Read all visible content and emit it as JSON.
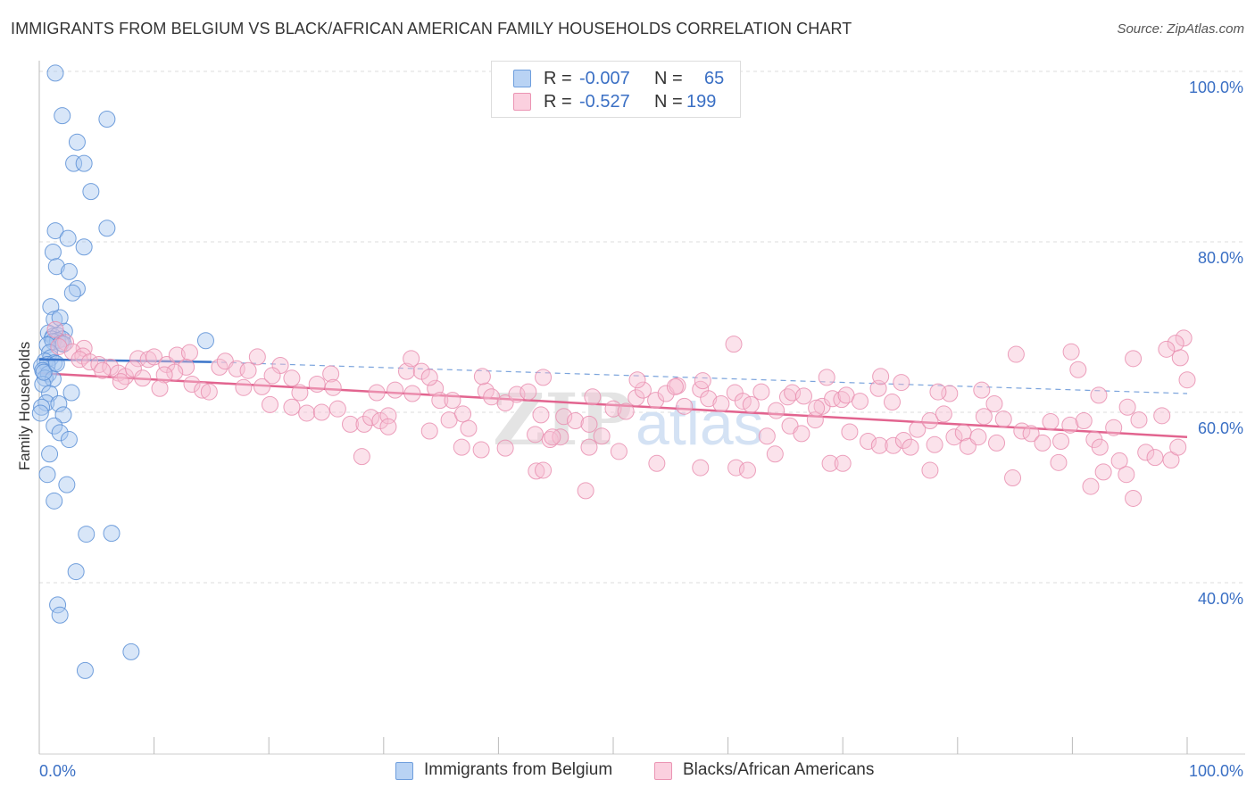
{
  "title": "IMMIGRANTS FROM BELGIUM VS BLACK/AFRICAN AMERICAN FAMILY HOUSEHOLDS CORRELATION CHART",
  "source": "Source: ZipAtlas.com",
  "legend": {
    "rows": [
      {
        "r_label": "R =",
        "r_value": "-0.007",
        "n_label": "N =",
        "n_value": "65"
      },
      {
        "r_label": "R =",
        "r_value": "-0.527",
        "n_label": "N =",
        "n_value": "199"
      }
    ]
  },
  "chart_data": {
    "type": "scatter",
    "title": "IMMIGRANTS FROM BELGIUM VS BLACK/AFRICAN AMERICAN FAMILY HOUSEHOLDS CORRELATION CHART",
    "xlabel": "",
    "ylabel": "Family Households",
    "xlim": [
      0,
      100
    ],
    "ylim": [
      20,
      102
    ],
    "x_tick_labels": [
      "0.0%",
      "100.0%"
    ],
    "y_ticks": [
      40,
      60,
      80,
      100
    ],
    "y_tick_labels": [
      "40.0%",
      "60.0%",
      "80.0%",
      "100.0%"
    ],
    "grid": true,
    "legend_position": "top-center",
    "colors": {
      "blue": "#8fb8ec",
      "blue_line": "#3a74c9",
      "pink": "#f0a6bf",
      "pink_line": "#e2648f",
      "tick_label": "#3a6fc4"
    },
    "watermark": "ZIPatlas",
    "series": [
      {
        "name": "Immigrants from Belgium",
        "color": "#8fb8ec",
        "trend": {
          "x": [
            0,
            15
          ],
          "y": [
            66.2,
            65.9
          ],
          "dashed_extension": {
            "x": [
              15,
              100
            ],
            "y": [
              65.9,
              62.2
            ]
          }
        },
        "points": [
          [
            1.4,
            99.8
          ],
          [
            2.0,
            94.8
          ],
          [
            5.9,
            94.4
          ],
          [
            3.3,
            91.7
          ],
          [
            3.0,
            89.2
          ],
          [
            3.9,
            89.2
          ],
          [
            4.5,
            85.9
          ],
          [
            1.4,
            81.3
          ],
          [
            5.9,
            81.6
          ],
          [
            2.5,
            80.4
          ],
          [
            1.2,
            78.8
          ],
          [
            3.9,
            79.4
          ],
          [
            1.5,
            77.1
          ],
          [
            2.6,
            76.5
          ],
          [
            3.3,
            74.5
          ],
          [
            2.9,
            74.0
          ],
          [
            1.0,
            72.4
          ],
          [
            1.3,
            70.9
          ],
          [
            1.8,
            71.1
          ],
          [
            2.2,
            69.5
          ],
          [
            0.8,
            69.3
          ],
          [
            1.2,
            68.9
          ],
          [
            1.6,
            69.0
          ],
          [
            1.1,
            68.6
          ],
          [
            2.0,
            68.6
          ],
          [
            1.6,
            68.4
          ],
          [
            1.2,
            68.3
          ],
          [
            1.9,
            68.1
          ],
          [
            0.7,
            67.9
          ],
          [
            2.1,
            68.0
          ],
          [
            14.5,
            68.4
          ],
          [
            0.9,
            67.0
          ],
          [
            1.0,
            66.4
          ],
          [
            0.5,
            66.0
          ],
          [
            1.3,
            65.8
          ],
          [
            0.7,
            65.6
          ],
          [
            0.2,
            65.4
          ],
          [
            0.3,
            64.9
          ],
          [
            0.8,
            64.5
          ],
          [
            0.5,
            64.0
          ],
          [
            1.2,
            63.9
          ],
          [
            0.3,
            63.3
          ],
          [
            0.9,
            62.2
          ],
          [
            2.8,
            62.3
          ],
          [
            0.6,
            61.1
          ],
          [
            1.7,
            61.0
          ],
          [
            0.2,
            60.6
          ],
          [
            0.1,
            59.9
          ],
          [
            2.1,
            59.7
          ],
          [
            1.3,
            58.4
          ],
          [
            1.8,
            57.6
          ],
          [
            2.6,
            56.8
          ],
          [
            0.9,
            55.1
          ],
          [
            0.7,
            52.7
          ],
          [
            2.4,
            51.5
          ],
          [
            1.3,
            49.6
          ],
          [
            4.1,
            45.7
          ],
          [
            6.3,
            45.8
          ],
          [
            3.2,
            41.3
          ],
          [
            1.6,
            37.4
          ],
          [
            1.8,
            36.2
          ],
          [
            8.0,
            31.9
          ],
          [
            4.0,
            29.7
          ],
          [
            0.4,
            64.7
          ],
          [
            1.5,
            65.7
          ]
        ]
      },
      {
        "name": "Blacks/African Americans",
        "color": "#f0a6bf",
        "trend": {
          "x": [
            0,
            100
          ],
          "y": [
            64.6,
            57.1
          ]
        },
        "points": [
          [
            1.4,
            69.7
          ],
          [
            2.3,
            68.2
          ],
          [
            1.7,
            67.7
          ],
          [
            3.9,
            67.5
          ],
          [
            2.9,
            67.1
          ],
          [
            3.8,
            66.6
          ],
          [
            3.5,
            66.2
          ],
          [
            4.4,
            65.9
          ],
          [
            5.2,
            65.6
          ],
          [
            6.2,
            65.3
          ],
          [
            5.5,
            64.9
          ],
          [
            6.9,
            64.6
          ],
          [
            7.5,
            64.2
          ],
          [
            7.1,
            63.6
          ],
          [
            8.6,
            66.3
          ],
          [
            9.5,
            66.2
          ],
          [
            10.0,
            66.5
          ],
          [
            11.1,
            65.6
          ],
          [
            12.0,
            66.7
          ],
          [
            13.1,
            67.0
          ],
          [
            12.8,
            65.3
          ],
          [
            11.8,
            64.7
          ],
          [
            10.9,
            64.4
          ],
          [
            8.2,
            65.1
          ],
          [
            9.0,
            64.0
          ],
          [
            10.5,
            62.8
          ],
          [
            13.3,
            63.3
          ],
          [
            14.2,
            62.6
          ],
          [
            14.8,
            62.4
          ],
          [
            15.7,
            65.3
          ],
          [
            16.2,
            66.0
          ],
          [
            17.2,
            65.1
          ],
          [
            18.2,
            64.9
          ],
          [
            17.8,
            62.9
          ],
          [
            19.4,
            63.0
          ],
          [
            19.0,
            66.5
          ],
          [
            21.0,
            65.5
          ],
          [
            20.3,
            64.3
          ],
          [
            22.0,
            64.0
          ],
          [
            22.7,
            62.3
          ],
          [
            24.2,
            63.3
          ],
          [
            25.4,
            64.5
          ],
          [
            25.6,
            62.9
          ],
          [
            20.1,
            60.9
          ],
          [
            22.0,
            60.6
          ],
          [
            23.3,
            59.9
          ],
          [
            24.6,
            60.0
          ],
          [
            26.0,
            60.4
          ],
          [
            27.1,
            58.6
          ],
          [
            28.3,
            58.6
          ],
          [
            28.9,
            59.4
          ],
          [
            29.7,
            59.0
          ],
          [
            30.4,
            59.6
          ],
          [
            29.4,
            62.3
          ],
          [
            31.0,
            62.6
          ],
          [
            32.0,
            64.8
          ],
          [
            33.3,
            64.8
          ],
          [
            32.5,
            62.2
          ],
          [
            34.5,
            62.8
          ],
          [
            34.9,
            61.4
          ],
          [
            36.0,
            61.4
          ],
          [
            35.7,
            59.1
          ],
          [
            36.9,
            59.8
          ],
          [
            37.4,
            58.1
          ],
          [
            38.9,
            62.5
          ],
          [
            39.4,
            61.8
          ],
          [
            40.6,
            61.1
          ],
          [
            41.6,
            62.1
          ],
          [
            42.6,
            62.4
          ],
          [
            43.7,
            59.7
          ],
          [
            43.2,
            57.4
          ],
          [
            44.5,
            56.8
          ],
          [
            45.7,
            59.5
          ],
          [
            46.7,
            59.0
          ],
          [
            47.9,
            58.6
          ],
          [
            49.0,
            57.2
          ],
          [
            48.2,
            61.8
          ],
          [
            50.0,
            60.4
          ],
          [
            51.1,
            60.1
          ],
          [
            52.0,
            61.7
          ],
          [
            52.6,
            62.6
          ],
          [
            53.7,
            61.4
          ],
          [
            54.6,
            62.2
          ],
          [
            55.6,
            63.1
          ],
          [
            56.2,
            60.7
          ],
          [
            57.6,
            62.7
          ],
          [
            58.3,
            61.6
          ],
          [
            59.4,
            61.0
          ],
          [
            60.6,
            62.3
          ],
          [
            61.3,
            61.3
          ],
          [
            62.0,
            60.9
          ],
          [
            62.9,
            62.4
          ],
          [
            64.2,
            60.2
          ],
          [
            65.2,
            61.8
          ],
          [
            65.6,
            62.3
          ],
          [
            66.6,
            61.9
          ],
          [
            67.6,
            59.1
          ],
          [
            68.2,
            60.7
          ],
          [
            69.1,
            61.6
          ],
          [
            69.9,
            61.5
          ],
          [
            70.3,
            62.0
          ],
          [
            71.5,
            61.3
          ],
          [
            73.1,
            62.8
          ],
          [
            74.3,
            61.2
          ],
          [
            75.1,
            63.5
          ],
          [
            76.5,
            58.0
          ],
          [
            77.6,
            59.0
          ],
          [
            78.0,
            56.2
          ],
          [
            78.8,
            59.8
          ],
          [
            79.7,
            57.1
          ],
          [
            80.5,
            57.6
          ],
          [
            80.9,
            56.0
          ],
          [
            82.3,
            59.5
          ],
          [
            83.2,
            61.0
          ],
          [
            84.0,
            59.2
          ],
          [
            85.6,
            57.8
          ],
          [
            86.4,
            57.5
          ],
          [
            87.4,
            56.4
          ],
          [
            88.1,
            58.9
          ],
          [
            89.0,
            56.6
          ],
          [
            89.8,
            58.5
          ],
          [
            91.0,
            59.0
          ],
          [
            91.9,
            56.8
          ],
          [
            92.4,
            55.9
          ],
          [
            93.6,
            58.2
          ],
          [
            94.1,
            54.3
          ],
          [
            94.8,
            60.6
          ],
          [
            95.8,
            59.1
          ],
          [
            96.4,
            55.3
          ],
          [
            97.2,
            54.7
          ],
          [
            97.8,
            59.6
          ],
          [
            98.6,
            54.4
          ],
          [
            99.2,
            55.9
          ],
          [
            99.7,
            68.7
          ],
          [
            99.0,
            68.1
          ],
          [
            98.2,
            67.4
          ],
          [
            99.4,
            66.4
          ],
          [
            100.0,
            63.8
          ],
          [
            95.3,
            66.3
          ],
          [
            92.3,
            62.0
          ],
          [
            90.5,
            65.0
          ],
          [
            89.9,
            67.1
          ],
          [
            85.1,
            66.8
          ],
          [
            82.1,
            62.6
          ],
          [
            79.3,
            62.2
          ],
          [
            78.3,
            62.4
          ],
          [
            73.3,
            64.2
          ],
          [
            68.6,
            64.1
          ],
          [
            60.5,
            68.0
          ],
          [
            52.1,
            63.8
          ],
          [
            43.9,
            64.1
          ],
          [
            38.6,
            64.2
          ],
          [
            34.0,
            64.1
          ],
          [
            32.4,
            66.3
          ],
          [
            30.4,
            58.3
          ],
          [
            28.1,
            54.8
          ],
          [
            34.0,
            57.8
          ],
          [
            36.8,
            55.9
          ],
          [
            38.5,
            55.6
          ],
          [
            40.6,
            55.8
          ],
          [
            43.3,
            53.1
          ],
          [
            43.9,
            53.2
          ],
          [
            45.4,
            57.1
          ],
          [
            47.9,
            55.9
          ],
          [
            50.5,
            55.4
          ],
          [
            53.8,
            54.0
          ],
          [
            57.6,
            53.5
          ],
          [
            60.7,
            53.5
          ],
          [
            61.7,
            53.2
          ],
          [
            64.1,
            55.1
          ],
          [
            65.4,
            58.4
          ],
          [
            66.4,
            57.5
          ],
          [
            68.9,
            54.0
          ],
          [
            70.0,
            54.0
          ],
          [
            70.6,
            57.7
          ],
          [
            72.2,
            56.6
          ],
          [
            73.2,
            56.1
          ],
          [
            74.4,
            56.1
          ],
          [
            75.3,
            56.7
          ],
          [
            75.9,
            55.9
          ],
          [
            77.6,
            53.2
          ],
          [
            81.8,
            57.1
          ],
          [
            83.4,
            56.4
          ],
          [
            84.8,
            52.3
          ],
          [
            88.8,
            54.1
          ],
          [
            91.6,
            51.3
          ],
          [
            92.7,
            53.0
          ],
          [
            94.7,
            52.7
          ],
          [
            95.3,
            49.9
          ],
          [
            47.6,
            50.8
          ],
          [
            44.7,
            57.1
          ],
          [
            67.7,
            60.5
          ],
          [
            63.4,
            57.2
          ],
          [
            57.8,
            63.7
          ],
          [
            55.4,
            63.0
          ]
        ]
      }
    ]
  },
  "bottom_legend": [
    "Immigrants from Belgium",
    "Blacks/African Americans"
  ]
}
